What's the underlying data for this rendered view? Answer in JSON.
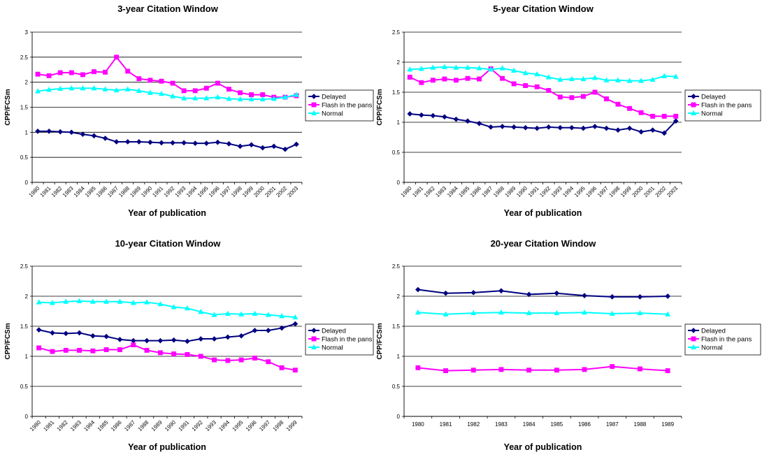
{
  "chart_data": [
    {
      "type": "line",
      "title": "3-year Citation Window",
      "xlabel": "Year of publication",
      "ylabel": "CPP/FCSm",
      "ylim": [
        0,
        3
      ],
      "yticks": [
        "0",
        "0.5",
        "1",
        "1.5",
        "2",
        "2.5",
        "3"
      ],
      "grid": true,
      "legend": "right",
      "categories": [
        "1980",
        "1981",
        "1982",
        "1983",
        "1984",
        "1985",
        "1986",
        "1987",
        "1988",
        "1989",
        "1990",
        "1991",
        "1992",
        "1993",
        "1994",
        "1995",
        "1996",
        "1997",
        "1998",
        "1999",
        "2000",
        "2001",
        "2002",
        "2003"
      ],
      "series": [
        {
          "name": "Delayed",
          "color": "#000080",
          "marker": "diamond",
          "values": [
            1.02,
            1.02,
            1.01,
            1.0,
            0.96,
            0.93,
            0.88,
            0.81,
            0.81,
            0.81,
            0.8,
            0.79,
            0.79,
            0.79,
            0.78,
            0.78,
            0.8,
            0.77,
            0.72,
            0.75,
            0.69,
            0.72,
            0.66,
            0.76
          ]
        },
        {
          "name": "Flash in the pans",
          "color": "#FF00FF",
          "marker": "square",
          "values": [
            2.16,
            2.13,
            2.19,
            2.19,
            2.15,
            2.21,
            2.2,
            2.5,
            2.22,
            2.07,
            2.04,
            2.02,
            1.98,
            1.83,
            1.83,
            1.88,
            1.98,
            1.86,
            1.79,
            1.75,
            1.75,
            1.7,
            1.7,
            1.73
          ]
        },
        {
          "name": "Normal",
          "color": "#00FFFF",
          "marker": "triangle",
          "values": [
            1.82,
            1.85,
            1.87,
            1.88,
            1.88,
            1.88,
            1.86,
            1.84,
            1.86,
            1.83,
            1.79,
            1.77,
            1.72,
            1.68,
            1.68,
            1.68,
            1.7,
            1.67,
            1.66,
            1.66,
            1.66,
            1.67,
            1.7,
            1.75
          ]
        }
      ]
    },
    {
      "type": "line",
      "title": "5-year Citation Window",
      "xlabel": "Year of publication",
      "ylabel": "CPP/FCSm",
      "ylim": [
        0,
        2.5
      ],
      "yticks": [
        "0",
        "0.5",
        "1",
        "1.5",
        "2",
        "2.5"
      ],
      "grid": true,
      "legend": "right",
      "categories": [
        "1980",
        "1981",
        "1982",
        "1983",
        "1984",
        "1985",
        "1986",
        "1987",
        "1988",
        "1989",
        "1990",
        "1991",
        "1992",
        "1993",
        "1994",
        "1995",
        "1996",
        "1997",
        "1998",
        "1999",
        "2000",
        "2001",
        "2002",
        "2003"
      ],
      "series": [
        {
          "name": "Delayed",
          "color": "#000080",
          "marker": "diamond",
          "values": [
            1.14,
            1.12,
            1.11,
            1.09,
            1.05,
            1.02,
            0.98,
            0.92,
            0.93,
            0.92,
            0.91,
            0.9,
            0.92,
            0.91,
            0.91,
            0.9,
            0.93,
            0.9,
            0.87,
            0.9,
            0.84,
            0.87,
            0.82,
            1.02
          ]
        },
        {
          "name": "Flash in the pans",
          "color": "#FF00FF",
          "marker": "square",
          "values": [
            1.75,
            1.66,
            1.7,
            1.72,
            1.7,
            1.73,
            1.72,
            1.89,
            1.73,
            1.64,
            1.61,
            1.59,
            1.53,
            1.42,
            1.41,
            1.43,
            1.5,
            1.39,
            1.3,
            1.23,
            1.16,
            1.1,
            1.1,
            1.1
          ]
        },
        {
          "name": "Normal",
          "color": "#00FFFF",
          "marker": "triangle",
          "values": [
            1.88,
            1.89,
            1.91,
            1.92,
            1.91,
            1.91,
            1.9,
            1.88,
            1.9,
            1.86,
            1.82,
            1.8,
            1.75,
            1.71,
            1.72,
            1.72,
            1.74,
            1.7,
            1.7,
            1.69,
            1.69,
            1.71,
            1.77,
            1.76
          ]
        }
      ]
    },
    {
      "type": "line",
      "title": "10-year Citation Window",
      "xlabel": "Year of publication",
      "ylabel": "CPP/FCSm",
      "ylim": [
        0,
        2.5
      ],
      "yticks": [
        "0",
        "0.5",
        "1",
        "1.5",
        "2",
        "2.5"
      ],
      "grid": true,
      "legend": "right",
      "categories": [
        "1980",
        "1981",
        "1982",
        "1983",
        "1984",
        "1985",
        "1986",
        "1987",
        "1988",
        "1989",
        "1990",
        "1991",
        "1992",
        "1993",
        "1994",
        "1995",
        "1996",
        "1997",
        "1998",
        "1999"
      ],
      "series": [
        {
          "name": "Delayed",
          "color": "#000080",
          "marker": "diamond",
          "values": [
            1.44,
            1.39,
            1.38,
            1.39,
            1.34,
            1.33,
            1.28,
            1.26,
            1.26,
            1.26,
            1.27,
            1.25,
            1.29,
            1.29,
            1.32,
            1.34,
            1.43,
            1.43,
            1.47,
            1.54
          ]
        },
        {
          "name": "Flash in the pans",
          "color": "#FF00FF",
          "marker": "square",
          "values": [
            1.14,
            1.08,
            1.1,
            1.1,
            1.09,
            1.11,
            1.11,
            1.19,
            1.1,
            1.06,
            1.04,
            1.03,
            1.0,
            0.94,
            0.93,
            0.94,
            0.97,
            0.91,
            0.81,
            0.77
          ]
        },
        {
          "name": "Normal",
          "color": "#00FFFF",
          "marker": "triangle",
          "values": [
            1.9,
            1.89,
            1.91,
            1.92,
            1.91,
            1.91,
            1.91,
            1.89,
            1.9,
            1.87,
            1.82,
            1.8,
            1.74,
            1.69,
            1.71,
            1.7,
            1.71,
            1.69,
            1.67,
            1.65
          ]
        }
      ]
    },
    {
      "type": "line",
      "title": "20-year Citation Window",
      "xlabel": "Year of publication",
      "ylabel": "CPP/FCSm",
      "ylim": [
        0,
        2.5
      ],
      "yticks": [
        "0",
        "0.5",
        "1",
        "1.5",
        "2",
        "2.5"
      ],
      "grid": true,
      "legend": "right",
      "categories": [
        "1980",
        "1981",
        "1982",
        "1983",
        "1984",
        "1985",
        "1986",
        "1987",
        "1988",
        "1989"
      ],
      "series": [
        {
          "name": "Delayed",
          "color": "#000080",
          "marker": "diamond",
          "values": [
            2.11,
            2.05,
            2.06,
            2.09,
            2.03,
            2.05,
            2.01,
            1.99,
            1.99,
            2.0
          ]
        },
        {
          "name": "Flash in the pans",
          "color": "#FF00FF",
          "marker": "square",
          "values": [
            0.81,
            0.76,
            0.77,
            0.78,
            0.77,
            0.77,
            0.78,
            0.83,
            0.79,
            0.76
          ]
        },
        {
          "name": "Normal",
          "color": "#00FFFF",
          "marker": "triangle",
          "values": [
            1.73,
            1.7,
            1.72,
            1.73,
            1.72,
            1.72,
            1.73,
            1.71,
            1.72,
            1.7
          ]
        }
      ]
    }
  ]
}
